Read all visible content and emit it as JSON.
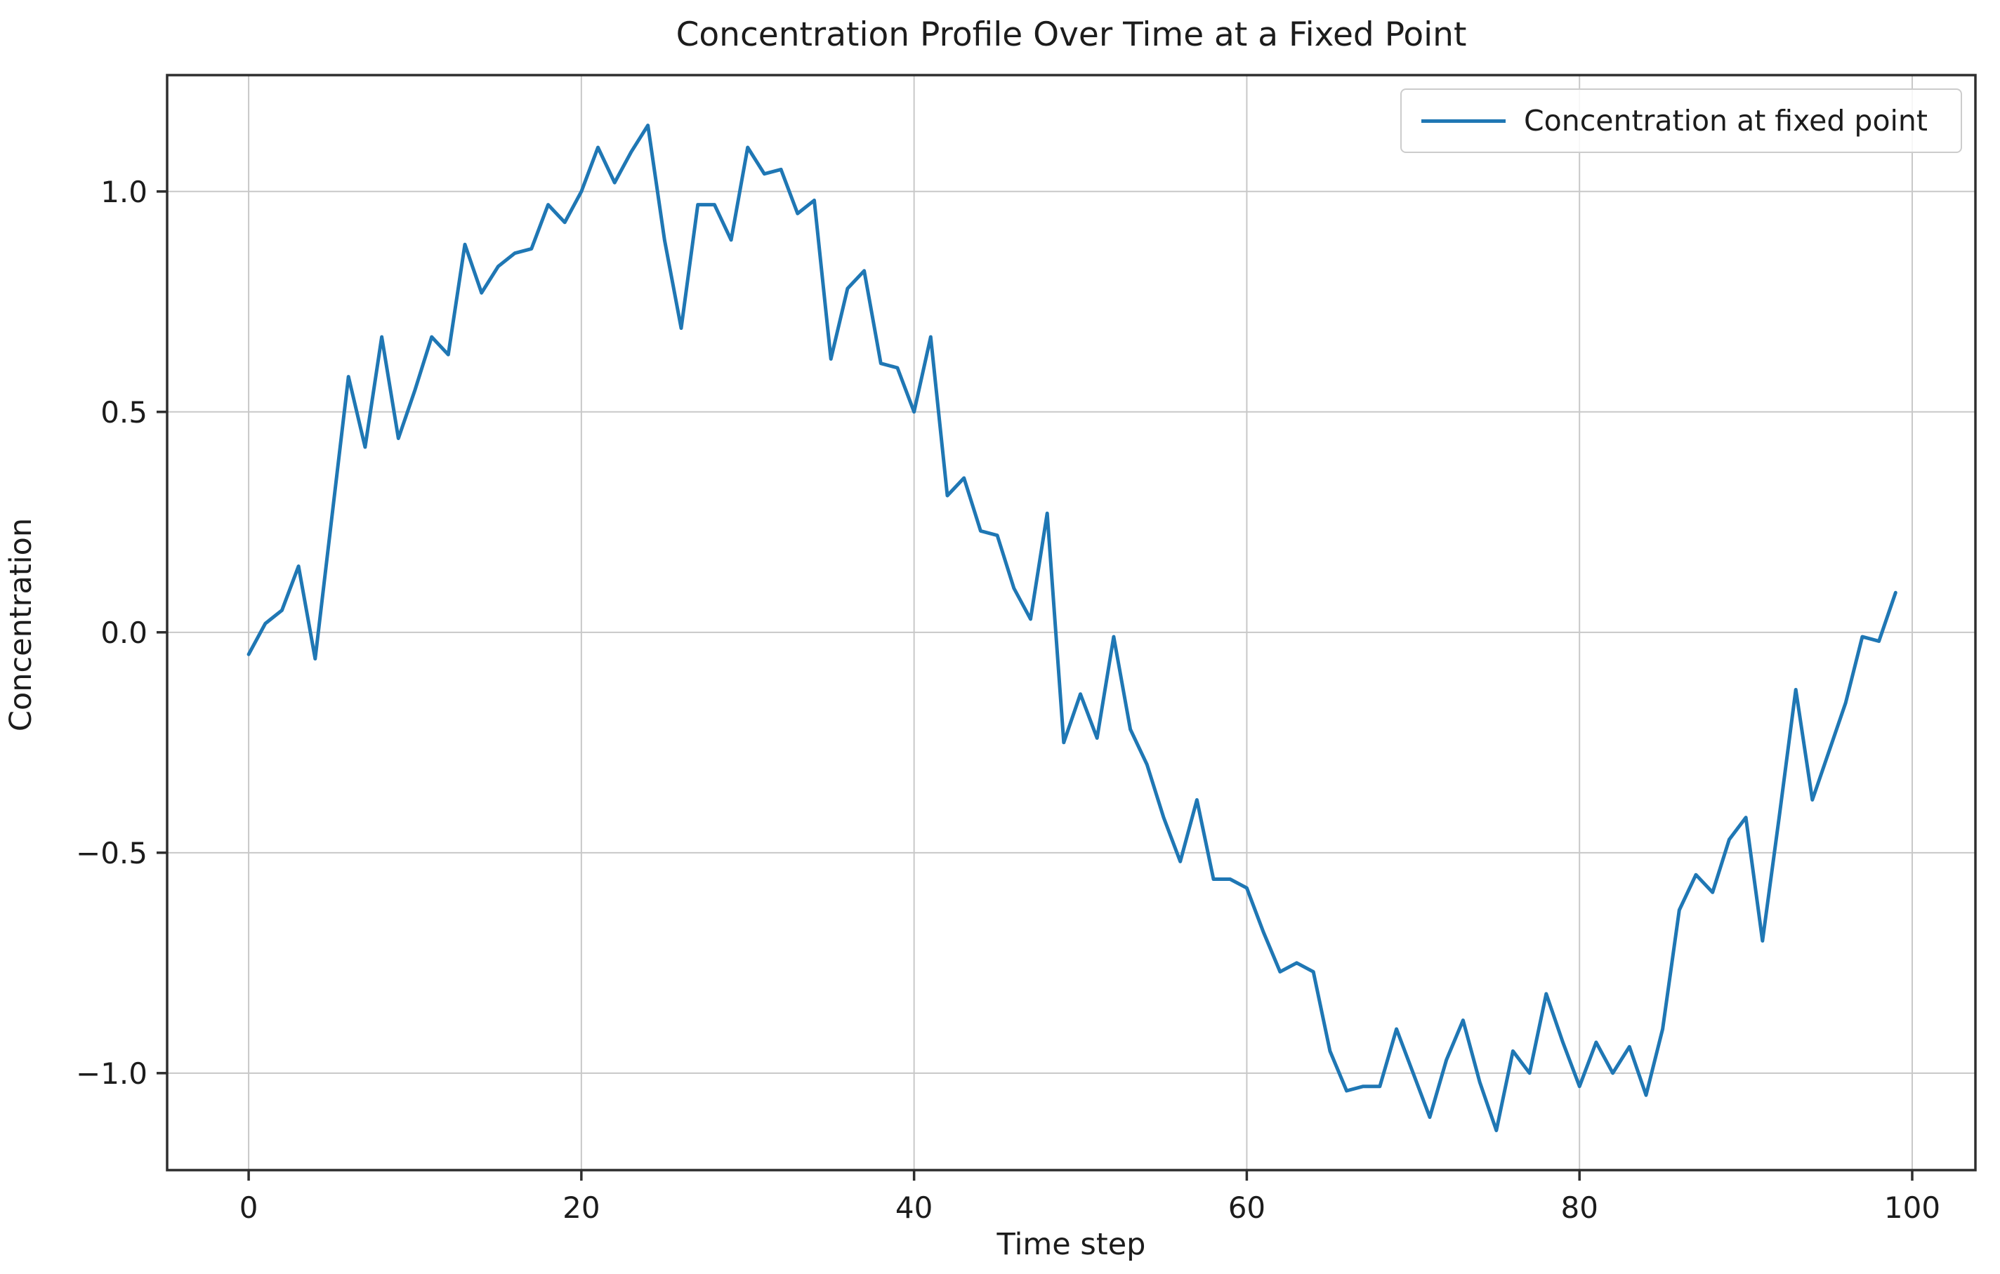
{
  "figure": {
    "title": "Concentration Profile Over Time at a Fixed Point",
    "xlabel": "Time step",
    "ylabel": "Concentration",
    "legend_label": "Concentration at fixed point"
  },
  "style": {
    "line_color": "#1f77b4",
    "grid_color": "#c8c8c8",
    "spine_color": "#2e2e2e",
    "text_color": "#1c1c1c",
    "background": "#ffffff"
  },
  "chart_data": {
    "type": "line",
    "title": "Concentration Profile Over Time at a Fixed Point",
    "xlabel": "Time step",
    "ylabel": "Concentration",
    "grid": true,
    "legend_position": "upper right",
    "xlim": [
      -4.9,
      103.8
    ],
    "ylim": [
      -1.22,
      1.264
    ],
    "xticks": [
      0,
      20,
      40,
      60,
      80,
      100
    ],
    "yticks": [
      -1.0,
      -0.5,
      0.0,
      0.5,
      1.0
    ],
    "series": [
      {
        "name": "Concentration at fixed point",
        "color": "#1f77b4",
        "x_start": 0,
        "x_step": 1,
        "values": [
          -0.05,
          0.02,
          0.05,
          0.15,
          -0.06,
          0.26,
          0.58,
          0.42,
          0.67,
          0.44,
          0.55,
          0.67,
          0.63,
          0.88,
          0.77,
          0.83,
          0.86,
          0.87,
          0.97,
          0.93,
          1.0,
          1.1,
          1.02,
          1.09,
          1.15,
          0.89,
          0.69,
          0.97,
          0.97,
          0.89,
          1.1,
          1.04,
          1.05,
          0.95,
          0.98,
          0.62,
          0.78,
          0.82,
          0.61,
          0.6,
          0.5,
          0.67,
          0.31,
          0.35,
          0.23,
          0.22,
          0.1,
          0.03,
          0.27,
          -0.25,
          -0.14,
          -0.24,
          -0.01,
          -0.22,
          -0.3,
          -0.42,
          -0.52,
          -0.38,
          -0.56,
          -0.56,
          -0.58,
          -0.68,
          -0.77,
          -0.75,
          -0.77,
          -0.95,
          -1.04,
          -1.03,
          -1.03,
          -0.9,
          -1.0,
          -1.1,
          -0.97,
          -0.88,
          -1.02,
          -1.13,
          -0.95,
          -1.0,
          -0.82,
          -0.93,
          -1.03,
          -0.93,
          -1.0,
          -0.94,
          -1.05,
          -0.9,
          -0.63,
          -0.55,
          -0.59,
          -0.47,
          -0.42,
          -0.7,
          -0.42,
          -0.13,
          -0.38,
          -0.27,
          -0.16,
          -0.01,
          -0.02,
          0.09
        ]
      }
    ]
  }
}
